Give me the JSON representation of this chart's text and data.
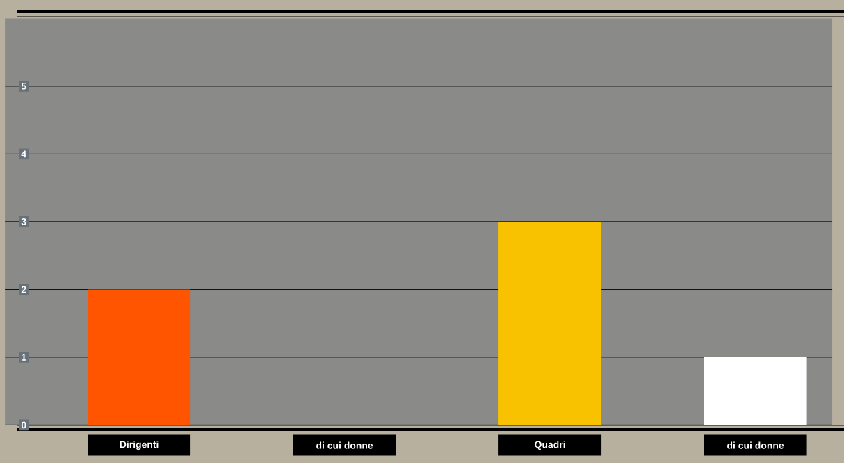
{
  "chart_data": {
    "type": "bar",
    "categories": [
      "Dirigenti",
      "di cui donne",
      "Quadri",
      "di cui donne"
    ],
    "values": [
      2,
      0,
      3,
      1
    ],
    "colors": [
      "#ff5500",
      "#ffffff",
      "#f8c200",
      "#ffffff"
    ],
    "ylim": [
      0,
      6
    ],
    "yticks": [
      0,
      1,
      2,
      3,
      4,
      5
    ],
    "grid": "y"
  }
}
